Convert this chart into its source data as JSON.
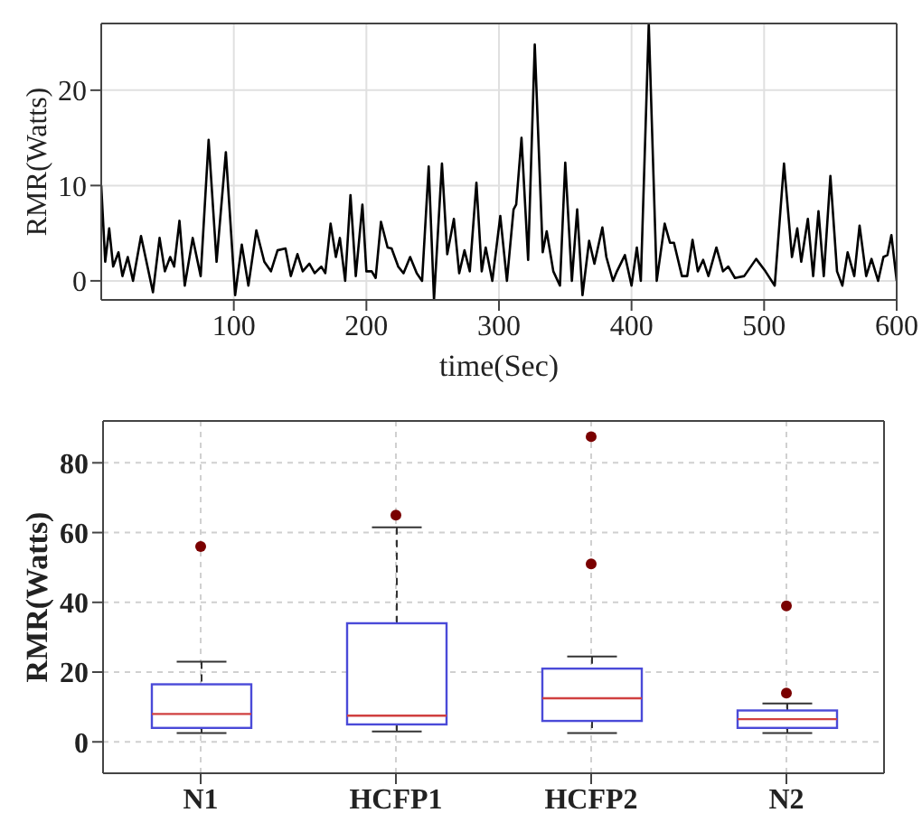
{
  "chart_data": [
    {
      "type": "line",
      "xlabel": "time(Sec)",
      "ylabel": "RMR(Watts)",
      "xlim": [
        0,
        600
      ],
      "ylim": [
        -2,
        27
      ],
      "xticks": [
        100,
        200,
        300,
        400,
        500,
        600
      ],
      "yticks": [
        0,
        10,
        20
      ],
      "grid": true,
      "marker": "none",
      "line_style": "solid",
      "series": [
        {
          "color": "#000000",
          "x": [
            0,
            3,
            6,
            9,
            13,
            16,
            20,
            24,
            30,
            39,
            44,
            48,
            52,
            55,
            59,
            63,
            69,
            75,
            81,
            87,
            94,
            101,
            106,
            111,
            117,
            123,
            128,
            133,
            139,
            143,
            148,
            152,
            157,
            161,
            166,
            169,
            173,
            177,
            180,
            184,
            188,
            192,
            197,
            200,
            204,
            207,
            211,
            216,
            219,
            224,
            228,
            233,
            238,
            242,
            247,
            251,
            257,
            261,
            266,
            270,
            274,
            278,
            283,
            287,
            290,
            295,
            301,
            306,
            311,
            313,
            317,
            322,
            327,
            333,
            336,
            341,
            346,
            350,
            355,
            359,
            363,
            368,
            372,
            378,
            381,
            386,
            389,
            395,
            400,
            404,
            407,
            413,
            419,
            425,
            429,
            432,
            438,
            442,
            446,
            450,
            454,
            458,
            464,
            469,
            473,
            478,
            485,
            494,
            501,
            508,
            515,
            521,
            525,
            528,
            533,
            537,
            541,
            545,
            550,
            555,
            559,
            563,
            568,
            572,
            577,
            581,
            586,
            590,
            593,
            596,
            600
          ],
          "values": [
            10,
            2,
            5.5,
            1.5,
            3,
            0.5,
            2.5,
            0,
            4.7,
            -1.2,
            4.5,
            1,
            2.5,
            1.5,
            6.3,
            -0.5,
            4.5,
            0.5,
            14.8,
            2,
            13.5,
            -1.5,
            3.8,
            -0.5,
            5.3,
            2,
            1,
            3.2,
            3.4,
            0.5,
            2.8,
            1,
            1.8,
            0.8,
            1.5,
            0.8,
            6,
            2.5,
            4.5,
            0,
            9,
            0.5,
            8,
            1,
            1,
            0.3,
            6.2,
            3.5,
            3.4,
            1.5,
            0.8,
            2.5,
            0.8,
            0,
            12,
            -2,
            12.3,
            2.8,
            6.5,
            0.8,
            3.2,
            1,
            10.3,
            1,
            3.5,
            0,
            6.8,
            0,
            7.5,
            8,
            15,
            2.2,
            24.8,
            3,
            5.2,
            1,
            -0.5,
            12.4,
            0,
            7.5,
            -1.5,
            4.2,
            1.8,
            5.6,
            2.5,
            0,
            1,
            2.7,
            -0.5,
            3.5,
            0,
            27,
            0,
            6,
            4,
            4,
            0.5,
            0.5,
            4.3,
            1,
            2.2,
            0.5,
            3.5,
            1,
            1.5,
            0.3,
            0.5,
            2.3,
            1,
            -0.5,
            12.3,
            2.5,
            5.5,
            2,
            6.5,
            0.5,
            7.3,
            0.5,
            11,
            1,
            -0.5,
            3,
            0.5,
            5.8,
            0.5,
            2.3,
            0,
            2.5,
            2.7,
            4.8,
            0
          ]
        }
      ]
    },
    {
      "type": "box",
      "ylabel": "RMR(Watts)",
      "categories": [
        "N1",
        "HCFP1",
        "HCFP2",
        "N2"
      ],
      "ylim": [
        -9,
        92
      ],
      "yticks": [
        0,
        20,
        40,
        60,
        80
      ],
      "grid": true,
      "color": "#4a4ad8",
      "boxes": [
        {
          "low": 2.5,
          "q1": 4,
          "median": 8,
          "q3": 16.5,
          "high": 23,
          "outliers": [
            56
          ]
        },
        {
          "low": 3,
          "q1": 5,
          "median": 7.5,
          "q3": 34,
          "high": 61.5,
          "outliers": [
            65
          ]
        },
        {
          "low": 2.5,
          "q1": 6,
          "median": 12.5,
          "q3": 21,
          "high": 24.5,
          "outliers": [
            51,
            87.5
          ]
        },
        {
          "low": 2.5,
          "q1": 4,
          "median": 6.5,
          "q3": 9,
          "high": 11,
          "outliers": [
            14,
            39
          ]
        }
      ]
    }
  ]
}
